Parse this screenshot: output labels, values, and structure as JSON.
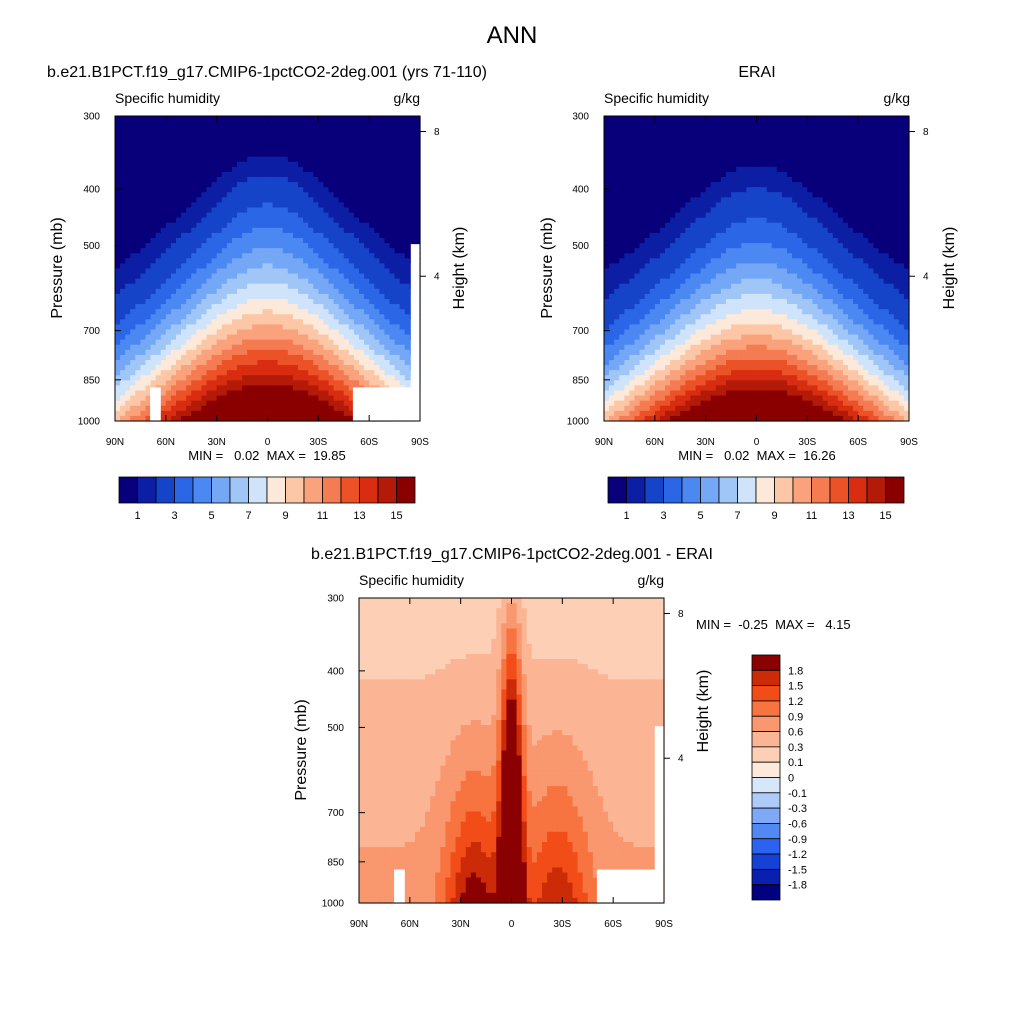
{
  "figure": {
    "title": "ANN"
  },
  "colors": {
    "main_palette": [
      "#08007b",
      "#0c1fa4",
      "#1644c8",
      "#2a66e6",
      "#4b88f2",
      "#74a8f6",
      "#a0c6f8",
      "#cfe4fb",
      "#fde9d9",
      "#fcc7a6",
      "#f9a27c",
      "#f57b53",
      "#ec5228",
      "#d82d10",
      "#b31a08",
      "#8a0000"
    ],
    "diff_palette": [
      "#000080",
      "#0a1fae",
      "#1541d6",
      "#2b63f0",
      "#5288f4",
      "#7fa9f7",
      "#aecaf9",
      "#d6e6fb",
      "#fde9d9",
      "#fdd0b6",
      "#fbb595",
      "#f9976f",
      "#f7733f",
      "#f24d18",
      "#cc2b07",
      "#8b0000"
    ]
  },
  "chart_data": [
    {
      "type": "contour",
      "panel_title": "b.e21.B1PCT.f19_g17.CMIP6-1pctCO2-2deg.001 (yrs 71-110)",
      "left_label": "Specific humidity",
      "right_label": "g/kg",
      "ylabel": "Pressure (mb)",
      "ylabel_right": "Height (km)",
      "x_ticks": [
        "90N",
        "60N",
        "30N",
        "0",
        "30S",
        "60S",
        "90S"
      ],
      "y_ticks": [
        "300",
        "400",
        "500",
        "700",
        "850",
        "1000"
      ],
      "y_ticks_right": [
        "8",
        "4"
      ],
      "stats_text": "MIN =   0.02  MAX =  19.85",
      "min": 0.02,
      "max": 19.85,
      "colorbar_labels": [
        "1",
        "3",
        "5",
        "7",
        "9",
        "11",
        "13",
        "15"
      ]
    },
    {
      "type": "contour",
      "panel_title": "ERAI",
      "left_label": "Specific humidity",
      "right_label": "g/kg",
      "ylabel": "Pressure (mb)",
      "ylabel_right": "Height (km)",
      "x_ticks": [
        "90N",
        "60N",
        "30N",
        "0",
        "30S",
        "60S",
        "90S"
      ],
      "y_ticks": [
        "300",
        "400",
        "500",
        "700",
        "850",
        "1000"
      ],
      "y_ticks_right": [
        "8",
        "4"
      ],
      "stats_text": "MIN =   0.02  MAX =  16.26",
      "min": 0.02,
      "max": 16.26,
      "colorbar_labels": [
        "1",
        "3",
        "5",
        "7",
        "9",
        "11",
        "13",
        "15"
      ]
    },
    {
      "type": "contour",
      "panel_title": "b.e21.B1PCT.f19_g17.CMIP6-1pctCO2-2deg.001 - ERAI",
      "left_label": "Specific humidity",
      "right_label": "g/kg",
      "ylabel": "Pressure (mb)",
      "ylabel_right": "Height (km)",
      "x_ticks": [
        "90N",
        "60N",
        "30N",
        "0",
        "30S",
        "60S",
        "90S"
      ],
      "y_ticks": [
        "300",
        "400",
        "500",
        "700",
        "850",
        "1000"
      ],
      "y_ticks_right": [
        "8",
        "4"
      ],
      "stats_text": "MIN =  -0.25  MAX =   4.15",
      "min": -0.25,
      "max": 4.15,
      "colorbar_labels": [
        "1.8",
        "1.5",
        "1.2",
        "0.9",
        "0.6",
        "0.3",
        "0.1",
        "0",
        "-0.1",
        "-0.3",
        "-0.6",
        "-0.9",
        "-1.2",
        "-1.5",
        "-1.8"
      ]
    }
  ]
}
